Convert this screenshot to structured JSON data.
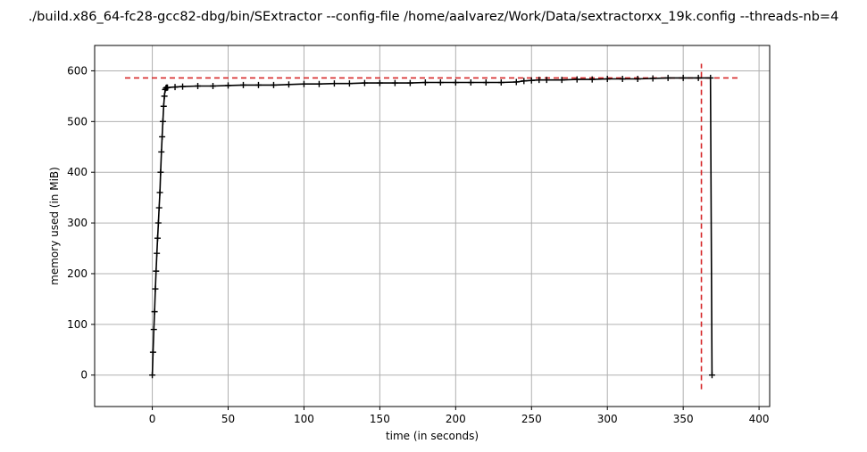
{
  "chart_data": {
    "type": "line",
    "title": "./build.x86_64-fc28-gcc82-dbg/bin/SExtractor --config-file /home/aalvarez/Work/Data/sextractorxx_19k.config --threads-nb=4",
    "xlabel": "time (in seconds)",
    "ylabel": "memory used (in MiB)",
    "xlim": [
      -38,
      407
    ],
    "ylim": [
      -62,
      650
    ],
    "xticks": [
      0,
      50,
      100,
      150,
      200,
      250,
      300,
      350,
      400
    ],
    "yticks": [
      0,
      100,
      200,
      300,
      400,
      500,
      600
    ],
    "grid": true,
    "legend": "none",
    "series": [
      {
        "color": "#000000",
        "marker": "+",
        "x": [
          0,
          0.5,
          1,
          1.5,
          2,
          2.5,
          3,
          3.5,
          4,
          4.5,
          5,
          5.5,
          6,
          6.5,
          7,
          7.5,
          8,
          8.5,
          9,
          9.5,
          10,
          15,
          20,
          30,
          40,
          50,
          60,
          70,
          80,
          90,
          100,
          110,
          120,
          130,
          140,
          150,
          160,
          170,
          180,
          190,
          200,
          210,
          220,
          230,
          240,
          245,
          250,
          255,
          260,
          270,
          280,
          290,
          300,
          310,
          320,
          330,
          340,
          350,
          360,
          368,
          369
        ],
        "y": [
          0,
          45,
          90,
          125,
          170,
          205,
          240,
          270,
          300,
          330,
          360,
          400,
          440,
          470,
          500,
          530,
          550,
          563,
          566,
          567,
          567,
          568,
          569,
          570,
          570,
          571,
          572,
          572,
          572,
          573,
          574,
          574,
          575,
          575,
          576,
          576,
          576,
          576,
          577,
          577,
          577,
          577,
          577,
          577,
          578,
          580,
          581,
          582,
          582,
          582,
          583,
          583,
          584,
          584,
          584,
          585,
          586,
          586,
          586,
          586,
          0
        ]
      }
    ],
    "reference_lines": {
      "color": "#d62728",
      "style": "dashed",
      "horizontal": {
        "y": 586,
        "x_from": -18,
        "x_to": 387
      },
      "vertical": {
        "x": 362,
        "y_from": -28,
        "y_to": 614
      }
    }
  }
}
